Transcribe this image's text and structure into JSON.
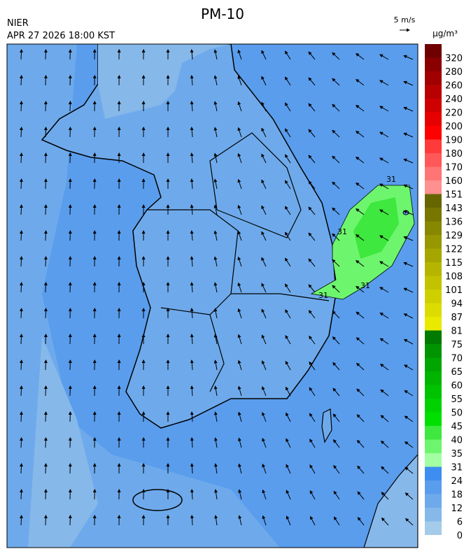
{
  "header": {
    "title": "PM-10",
    "agency": "NIER",
    "timestamp": "APR 27 2026 18:00 KST",
    "wind_scale": "5 m/s",
    "unit": "µg/m³"
  },
  "map": {
    "contour_label": "31"
  },
  "colorbar": {
    "levels": [
      0,
      6,
      12,
      18,
      24,
      31,
      35,
      40,
      45,
      50,
      55,
      60,
      65,
      70,
      75,
      81,
      87,
      94,
      101,
      108,
      115,
      122,
      129,
      136,
      143,
      151,
      160,
      170,
      180,
      190,
      200,
      220,
      240,
      260,
      280,
      320
    ],
    "colors": [
      "#a4cbe9",
      "#86b8ea",
      "#6eaaeb",
      "#5a9ded",
      "#3e8df0",
      "#a2ffa2",
      "#6ef56e",
      "#3ee83e",
      "#00e000",
      "#00d200",
      "#00c300",
      "#00b400",
      "#00a500",
      "#009400",
      "#007a00",
      "#eaea00",
      "#dcdc00",
      "#cfcf00",
      "#c2c200",
      "#b5b500",
      "#a6a600",
      "#979700",
      "#878700",
      "#777700",
      "#666600",
      "#ff9090",
      "#ff7474",
      "#ff5858",
      "#ff3a3a",
      "#ff0000",
      "#e60000",
      "#cf0000",
      "#b90000",
      "#a20000",
      "#8a0000",
      "#6e0000"
    ]
  }
}
